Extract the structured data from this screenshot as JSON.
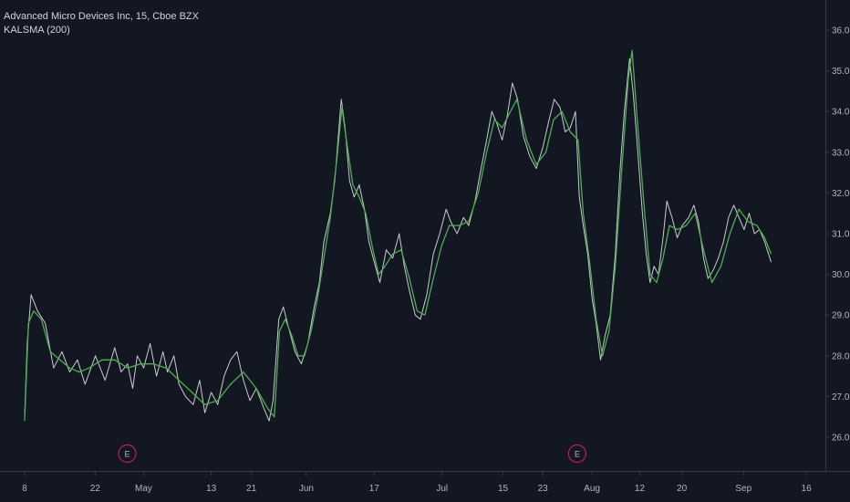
{
  "legend": {
    "title": "Advanced Micro Devices Inc, 15, Cboe BZX",
    "indicator": "KALSMA (200)"
  },
  "colors": {
    "background": "#131722",
    "price_line": "#c9c9d1",
    "indicator_line": "#4caf50",
    "axis": "#363a45",
    "tick_text": "#b2b5be",
    "earnings_marker": "#c2185b"
  },
  "chart_data": {
    "type": "line",
    "title": "Advanced Micro Devices Inc, 15, Cboe BZX",
    "xlabel": "",
    "ylabel": "",
    "ylim": [
      25.6,
      36.3
    ],
    "y_ticks": [
      26.0,
      27.0,
      28.0,
      29.0,
      30.0,
      31.0,
      32.0,
      33.0,
      34.0,
      35.0,
      36.0
    ],
    "x_ticks": [
      {
        "label": "8",
        "t": 0.0
      },
      {
        "label": "22",
        "t": 0.1095
      },
      {
        "label": "May",
        "t": 0.1849
      },
      {
        "label": "13",
        "t": 0.2901
      },
      {
        "label": "21",
        "t": 0.3524
      },
      {
        "label": "Jun",
        "t": 0.4378
      },
      {
        "label": "17",
        "t": 0.5432
      },
      {
        "label": "Jul",
        "t": 0.6487
      },
      {
        "label": "15",
        "t": 0.7434
      },
      {
        "label": "23",
        "t": 0.8052
      },
      {
        "label": "Aug",
        "t": 0.8816
      },
      {
        "label": "12",
        "t": 0.9558
      },
      {
        "label": "20",
        "t": 1.0214
      },
      {
        "label": "Sep",
        "t": 1.1172
      },
      {
        "label": "16",
        "t": 1.2147
      }
    ],
    "earnings": [
      {
        "label": "E",
        "t": 0.1595
      },
      {
        "label": "E",
        "t": 0.8587
      }
    ],
    "series": [
      {
        "role": "price",
        "color": "#c9c9d1",
        "points": [
          [
            0,
            26.5
          ],
          [
            0.004,
            28.3
          ],
          [
            0.01,
            29.5
          ],
          [
            0.02,
            29.1
          ],
          [
            0.032,
            28.8
          ],
          [
            0.045,
            27.7
          ],
          [
            0.058,
            28.1
          ],
          [
            0.07,
            27.6
          ],
          [
            0.082,
            27.9
          ],
          [
            0.094,
            27.3
          ],
          [
            0.11,
            28.0
          ],
          [
            0.125,
            27.4
          ],
          [
            0.14,
            28.2
          ],
          [
            0.15,
            27.6
          ],
          [
            0.16,
            27.8
          ],
          [
            0.168,
            27.2
          ],
          [
            0.175,
            28.0
          ],
          [
            0.185,
            27.7
          ],
          [
            0.195,
            28.3
          ],
          [
            0.205,
            27.5
          ],
          [
            0.215,
            28.1
          ],
          [
            0.222,
            27.6
          ],
          [
            0.232,
            28.0
          ],
          [
            0.24,
            27.3
          ],
          [
            0.25,
            27.0
          ],
          [
            0.262,
            26.8
          ],
          [
            0.272,
            27.4
          ],
          [
            0.28,
            26.6
          ],
          [
            0.29,
            27.1
          ],
          [
            0.3,
            26.8
          ],
          [
            0.31,
            27.5
          ],
          [
            0.32,
            27.9
          ],
          [
            0.33,
            28.1
          ],
          [
            0.34,
            27.4
          ],
          [
            0.35,
            26.9
          ],
          [
            0.36,
            27.2
          ],
          [
            0.372,
            26.7
          ],
          [
            0.38,
            26.4
          ],
          [
            0.386,
            26.9
          ],
          [
            0.395,
            28.9
          ],
          [
            0.402,
            29.2
          ],
          [
            0.41,
            28.7
          ],
          [
            0.42,
            28.1
          ],
          [
            0.43,
            27.8
          ],
          [
            0.44,
            28.3
          ],
          [
            0.45,
            29.2
          ],
          [
            0.458,
            29.8
          ],
          [
            0.465,
            30.8
          ],
          [
            0.475,
            31.5
          ],
          [
            0.482,
            32.3
          ],
          [
            0.488,
            33.5
          ],
          [
            0.492,
            34.3
          ],
          [
            0.498,
            33.6
          ],
          [
            0.505,
            32.3
          ],
          [
            0.512,
            31.9
          ],
          [
            0.52,
            32.2
          ],
          [
            0.528,
            31.6
          ],
          [
            0.535,
            30.8
          ],
          [
            0.545,
            30.2
          ],
          [
            0.552,
            29.8
          ],
          [
            0.562,
            30.6
          ],
          [
            0.572,
            30.4
          ],
          [
            0.582,
            31.0
          ],
          [
            0.59,
            30.2
          ],
          [
            0.598,
            29.6
          ],
          [
            0.607,
            29.0
          ],
          [
            0.615,
            28.9
          ],
          [
            0.625,
            29.5
          ],
          [
            0.635,
            30.5
          ],
          [
            0.645,
            31.0
          ],
          [
            0.655,
            31.6
          ],
          [
            0.662,
            31.3
          ],
          [
            0.672,
            31.0
          ],
          [
            0.682,
            31.4
          ],
          [
            0.69,
            31.2
          ],
          [
            0.7,
            31.8
          ],
          [
            0.708,
            32.5
          ],
          [
            0.718,
            33.3
          ],
          [
            0.726,
            34.0
          ],
          [
            0.734,
            33.7
          ],
          [
            0.742,
            33.3
          ],
          [
            0.75,
            33.9
          ],
          [
            0.758,
            34.7
          ],
          [
            0.766,
            34.3
          ],
          [
            0.775,
            33.4
          ],
          [
            0.785,
            32.9
          ],
          [
            0.795,
            32.6
          ],
          [
            0.805,
            33.1
          ],
          [
            0.815,
            33.8
          ],
          [
            0.823,
            34.3
          ],
          [
            0.832,
            34.1
          ],
          [
            0.84,
            33.5
          ],
          [
            0.848,
            33.6
          ],
          [
            0.856,
            34.0
          ],
          [
            0.862,
            31.9
          ],
          [
            0.868,
            31.2
          ],
          [
            0.875,
            30.5
          ],
          [
            0.882,
            29.4
          ],
          [
            0.888,
            28.8
          ],
          [
            0.895,
            27.9
          ],
          [
            0.902,
            28.5
          ],
          [
            0.91,
            29.0
          ],
          [
            0.918,
            30.5
          ],
          [
            0.925,
            32.5
          ],
          [
            0.932,
            34.0
          ],
          [
            0.94,
            35.3
          ],
          [
            0.946,
            34.4
          ],
          [
            0.952,
            33.2
          ],
          [
            0.96,
            31.5
          ],
          [
            0.966,
            30.5
          ],
          [
            0.972,
            29.8
          ],
          [
            0.978,
            30.2
          ],
          [
            0.985,
            30.0
          ],
          [
            0.992,
            30.9
          ],
          [
            0.998,
            31.8
          ],
          [
            1.006,
            31.4
          ],
          [
            1.014,
            30.9
          ],
          [
            1.022,
            31.2
          ],
          [
            1.032,
            31.4
          ],
          [
            1.04,
            31.7
          ],
          [
            1.047,
            31.3
          ],
          [
            1.055,
            30.4
          ],
          [
            1.062,
            29.9
          ],
          [
            1.07,
            30.1
          ],
          [
            1.078,
            30.4
          ],
          [
            1.086,
            30.8
          ],
          [
            1.094,
            31.4
          ],
          [
            1.102,
            31.7
          ],
          [
            1.11,
            31.4
          ],
          [
            1.118,
            31.1
          ],
          [
            1.126,
            31.5
          ],
          [
            1.134,
            31.0
          ],
          [
            1.142,
            31.1
          ],
          [
            1.15,
            30.8
          ],
          [
            1.16,
            30.3
          ]
        ]
      },
      {
        "role": "KALSMA (200)",
        "color": "#4caf50",
        "points": [
          [
            0,
            26.4
          ],
          [
            0.006,
            28.8
          ],
          [
            0.014,
            29.1
          ],
          [
            0.026,
            28.9
          ],
          [
            0.04,
            28.1
          ],
          [
            0.055,
            27.9
          ],
          [
            0.07,
            27.7
          ],
          [
            0.085,
            27.6
          ],
          [
            0.1,
            27.7
          ],
          [
            0.12,
            27.9
          ],
          [
            0.14,
            27.9
          ],
          [
            0.16,
            27.7
          ],
          [
            0.18,
            27.8
          ],
          [
            0.2,
            27.8
          ],
          [
            0.22,
            27.7
          ],
          [
            0.24,
            27.4
          ],
          [
            0.26,
            27.1
          ],
          [
            0.28,
            26.8
          ],
          [
            0.3,
            26.9
          ],
          [
            0.32,
            27.3
          ],
          [
            0.34,
            27.6
          ],
          [
            0.36,
            27.2
          ],
          [
            0.378,
            26.7
          ],
          [
            0.388,
            26.5
          ],
          [
            0.396,
            28.6
          ],
          [
            0.405,
            28.9
          ],
          [
            0.415,
            28.5
          ],
          [
            0.425,
            28.0
          ],
          [
            0.435,
            28.0
          ],
          [
            0.445,
            28.6
          ],
          [
            0.455,
            29.4
          ],
          [
            0.465,
            30.4
          ],
          [
            0.475,
            31.4
          ],
          [
            0.485,
            32.8
          ],
          [
            0.493,
            34.1
          ],
          [
            0.5,
            33.3
          ],
          [
            0.51,
            32.2
          ],
          [
            0.52,
            31.9
          ],
          [
            0.53,
            31.5
          ],
          [
            0.54,
            30.7
          ],
          [
            0.55,
            30.0
          ],
          [
            0.56,
            30.2
          ],
          [
            0.572,
            30.5
          ],
          [
            0.585,
            30.6
          ],
          [
            0.598,
            29.9
          ],
          [
            0.61,
            29.1
          ],
          [
            0.622,
            29.0
          ],
          [
            0.635,
            29.9
          ],
          [
            0.648,
            30.7
          ],
          [
            0.66,
            31.2
          ],
          [
            0.675,
            31.2
          ],
          [
            0.69,
            31.3
          ],
          [
            0.705,
            32.0
          ],
          [
            0.718,
            33.0
          ],
          [
            0.73,
            33.8
          ],
          [
            0.742,
            33.6
          ],
          [
            0.755,
            34.0
          ],
          [
            0.765,
            34.3
          ],
          [
            0.78,
            33.3
          ],
          [
            0.795,
            32.7
          ],
          [
            0.81,
            33.0
          ],
          [
            0.822,
            33.8
          ],
          [
            0.835,
            34.0
          ],
          [
            0.848,
            33.5
          ],
          [
            0.86,
            33.3
          ],
          [
            0.868,
            31.5
          ],
          [
            0.878,
            30.3
          ],
          [
            0.888,
            28.9
          ],
          [
            0.898,
            28.0
          ],
          [
            0.908,
            28.6
          ],
          [
            0.918,
            30.2
          ],
          [
            0.928,
            32.6
          ],
          [
            0.938,
            34.8
          ],
          [
            0.944,
            35.5
          ],
          [
            0.952,
            33.8
          ],
          [
            0.962,
            31.8
          ],
          [
            0.972,
            30.0
          ],
          [
            0.982,
            29.8
          ],
          [
            0.992,
            30.4
          ],
          [
            1.002,
            31.2
          ],
          [
            1.014,
            31.1
          ],
          [
            1.028,
            31.2
          ],
          [
            1.042,
            31.5
          ],
          [
            1.055,
            30.6
          ],
          [
            1.068,
            29.8
          ],
          [
            1.082,
            30.2
          ],
          [
            1.096,
            31.0
          ],
          [
            1.11,
            31.6
          ],
          [
            1.124,
            31.3
          ],
          [
            1.138,
            31.2
          ],
          [
            1.15,
            30.9
          ],
          [
            1.16,
            30.5
          ]
        ]
      }
    ],
    "grid": false,
    "legend_position": "top-left"
  }
}
